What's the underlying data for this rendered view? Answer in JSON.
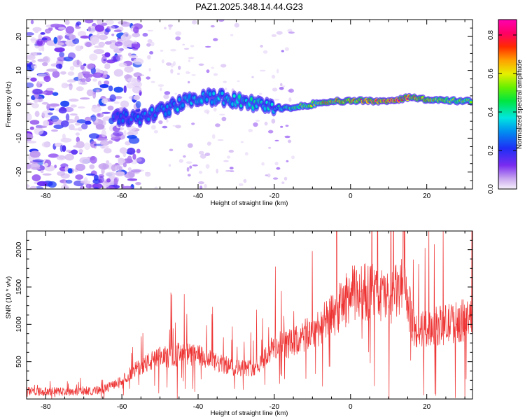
{
  "title": "PAZ1.2025.348.14.44.G23",
  "chart_data": [
    {
      "type": "heatmap",
      "name": "spectrogram",
      "xlabel": "Height of straight line (km)",
      "ylabel": "Frequency (Hz)",
      "xlim": [
        -85,
        32
      ],
      "ylim": [
        -25,
        25
      ],
      "xticks": [
        -80,
        -60,
        -40,
        -20,
        0,
        20
      ],
      "yticks": [
        -20,
        -10,
        0,
        10,
        20
      ],
      "colorbar": {
        "label": "Normalized spectral amplitude",
        "range": [
          0,
          0.88
        ],
        "ticks": [
          "0.0",
          "0.2",
          "0.4",
          "0.6",
          "0.8"
        ],
        "tick_values": [
          0,
          0.2,
          0.4,
          0.6,
          0.8
        ]
      },
      "ridge": {
        "height_km": [
          -60,
          -55,
          -50,
          -45,
          -40,
          -35,
          -30,
          -25,
          -20,
          -15,
          -10,
          -5,
          0,
          5,
          10,
          15,
          20,
          25,
          32
        ],
        "frequency_hz": [
          -4,
          -4,
          -2,
          0,
          2,
          2,
          1,
          0,
          -1,
          -1,
          0,
          1,
          1,
          1,
          1,
          2,
          1.5,
          1,
          1
        ],
        "amplitude": [
          0.28,
          0.3,
          0.32,
          0.36,
          0.35,
          0.38,
          0.4,
          0.42,
          0.35,
          0.5,
          0.6,
          0.75,
          0.7,
          0.8,
          0.85,
          0.8,
          0.7,
          0.6,
          0.55
        ]
      }
    },
    {
      "type": "line",
      "name": "snr",
      "xlabel": "Height of straight line (km)",
      "ylabel": "SNR (10 * v/v)",
      "xlim": [
        -85,
        32
      ],
      "ylim": [
        0,
        2250
      ],
      "xticks": [
        -80,
        -60,
        -40,
        -20,
        0,
        20
      ],
      "yticks": [
        500,
        1000,
        1500,
        2000
      ],
      "color": "#ee3333",
      "envelope": {
        "x": [
          -85,
          -75,
          -65,
          -60,
          -55,
          -50,
          -45,
          -40,
          -35,
          -30,
          -25,
          -20,
          -15,
          -10,
          -5,
          0,
          5,
          10,
          14,
          17,
          20,
          25,
          32
        ],
        "y": [
          100,
          100,
          120,
          250,
          450,
          550,
          600,
          580,
          480,
          420,
          420,
          700,
          750,
          900,
          1100,
          1400,
          1450,
          1350,
          1500,
          900,
          950,
          1000,
          1080
        ]
      }
    }
  ]
}
